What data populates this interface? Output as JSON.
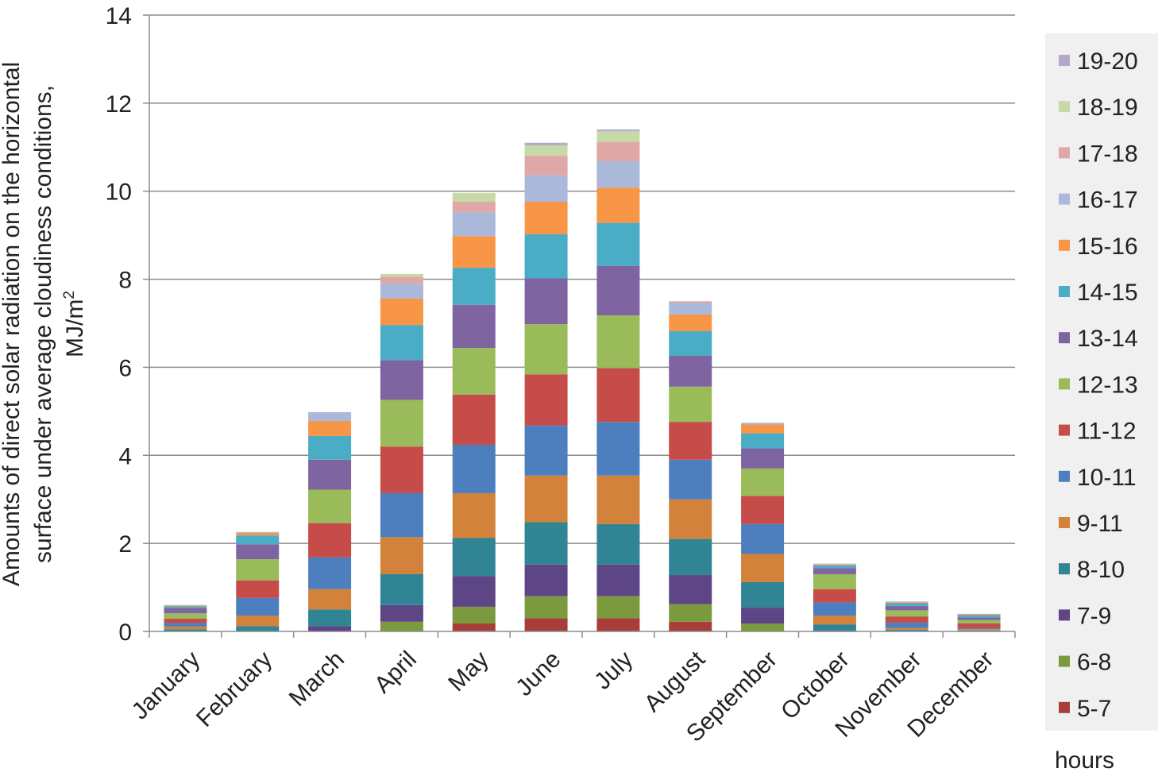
{
  "chart_data": {
    "type": "bar",
    "stacked": true,
    "title": "",
    "xlabel": "",
    "ylabel_lines": [
      "Amounts of direct solar radiation on the horizontal",
      "surface under average cloudiness conditions,",
      "MJ/m"
    ],
    "ylabel_superscript": "2",
    "ylim": [
      0,
      14
    ],
    "yticks": [
      0,
      2,
      4,
      6,
      8,
      10,
      12,
      14
    ],
    "grid": true,
    "legend_position": "right",
    "legend_title": "hours",
    "categories": [
      "January",
      "February",
      "March",
      "April",
      "May",
      "June",
      "July",
      "August",
      "September",
      "October",
      "November",
      "December"
    ],
    "series": [
      {
        "name": "5-7",
        "color": "#a83e3b",
        "values": [
          0,
          0,
          0,
          0,
          0.18,
          0.3,
          0.3,
          0.22,
          0,
          0,
          0,
          0
        ]
      },
      {
        "name": "6-8",
        "color": "#7a9a3d",
        "values": [
          0,
          0,
          0,
          0.22,
          0.38,
          0.5,
          0.5,
          0.4,
          0.18,
          0,
          0,
          0
        ]
      },
      {
        "name": "7-9",
        "color": "#5e4585",
        "values": [
          0,
          0,
          0.12,
          0.38,
          0.7,
          0.72,
          0.72,
          0.66,
          0.36,
          0.02,
          0,
          0
        ]
      },
      {
        "name": "8-10",
        "color": "#318494",
        "values": [
          0.05,
          0.12,
          0.38,
          0.7,
          0.86,
          0.96,
          0.92,
          0.82,
          0.58,
          0.14,
          0.04,
          0.02
        ]
      },
      {
        "name": "9-11",
        "color": "#d2823a",
        "values": [
          0.06,
          0.24,
          0.46,
          0.84,
          1.02,
          1.06,
          1.1,
          0.9,
          0.64,
          0.2,
          0.04,
          0.03
        ]
      },
      {
        "name": "10-11",
        "color": "#4d7fbf",
        "values": [
          0.08,
          0.4,
          0.72,
          1.0,
          1.1,
          1.14,
          1.22,
          0.9,
          0.68,
          0.3,
          0.12,
          0.03
        ]
      },
      {
        "name": "11-12",
        "color": "#c54c49",
        "values": [
          0.1,
          0.4,
          0.78,
          1.06,
          1.14,
          1.16,
          1.22,
          0.86,
          0.64,
          0.3,
          0.14,
          0.1
        ]
      },
      {
        "name": "12-13",
        "color": "#9abb59",
        "values": [
          0.12,
          0.48,
          0.76,
          1.06,
          1.06,
          1.14,
          1.2,
          0.8,
          0.62,
          0.34,
          0.14,
          0.08
        ]
      },
      {
        "name": "13-14",
        "color": "#7f64a2",
        "values": [
          0.12,
          0.34,
          0.68,
          0.9,
          0.98,
          1.04,
          1.12,
          0.7,
          0.46,
          0.14,
          0.1,
          0.06
        ]
      },
      {
        "name": "14-15",
        "color": "#4bacc6",
        "values": [
          0.04,
          0.2,
          0.54,
          0.8,
          0.84,
          1.0,
          0.98,
          0.56,
          0.34,
          0.06,
          0.06,
          0.05
        ]
      },
      {
        "name": "15-16",
        "color": "#f79646",
        "values": [
          0.02,
          0.06,
          0.34,
          0.6,
          0.72,
          0.74,
          0.8,
          0.38,
          0.2,
          0.02,
          0.02,
          0.02
        ]
      },
      {
        "name": "16-17",
        "color": "#aab8d9",
        "values": [
          0.01,
          0.02,
          0.2,
          0.34,
          0.54,
          0.6,
          0.6,
          0.26,
          0.04,
          0.02,
          0.02,
          0.01
        ]
      },
      {
        "name": "17-18",
        "color": "#dfa8a7",
        "values": [
          0,
          0,
          0,
          0.16,
          0.24,
          0.44,
          0.44,
          0.04,
          0,
          0,
          0,
          0
        ]
      },
      {
        "name": "18-19",
        "color": "#c5daa5",
        "values": [
          0,
          0,
          0,
          0.06,
          0.2,
          0.24,
          0.24,
          0,
          0,
          0,
          0,
          0
        ]
      },
      {
        "name": "19-20",
        "color": "#b4a9cb",
        "values": [
          0,
          0,
          0,
          0,
          0,
          0.06,
          0.04,
          0,
          0,
          0,
          0,
          0
        ]
      }
    ]
  }
}
